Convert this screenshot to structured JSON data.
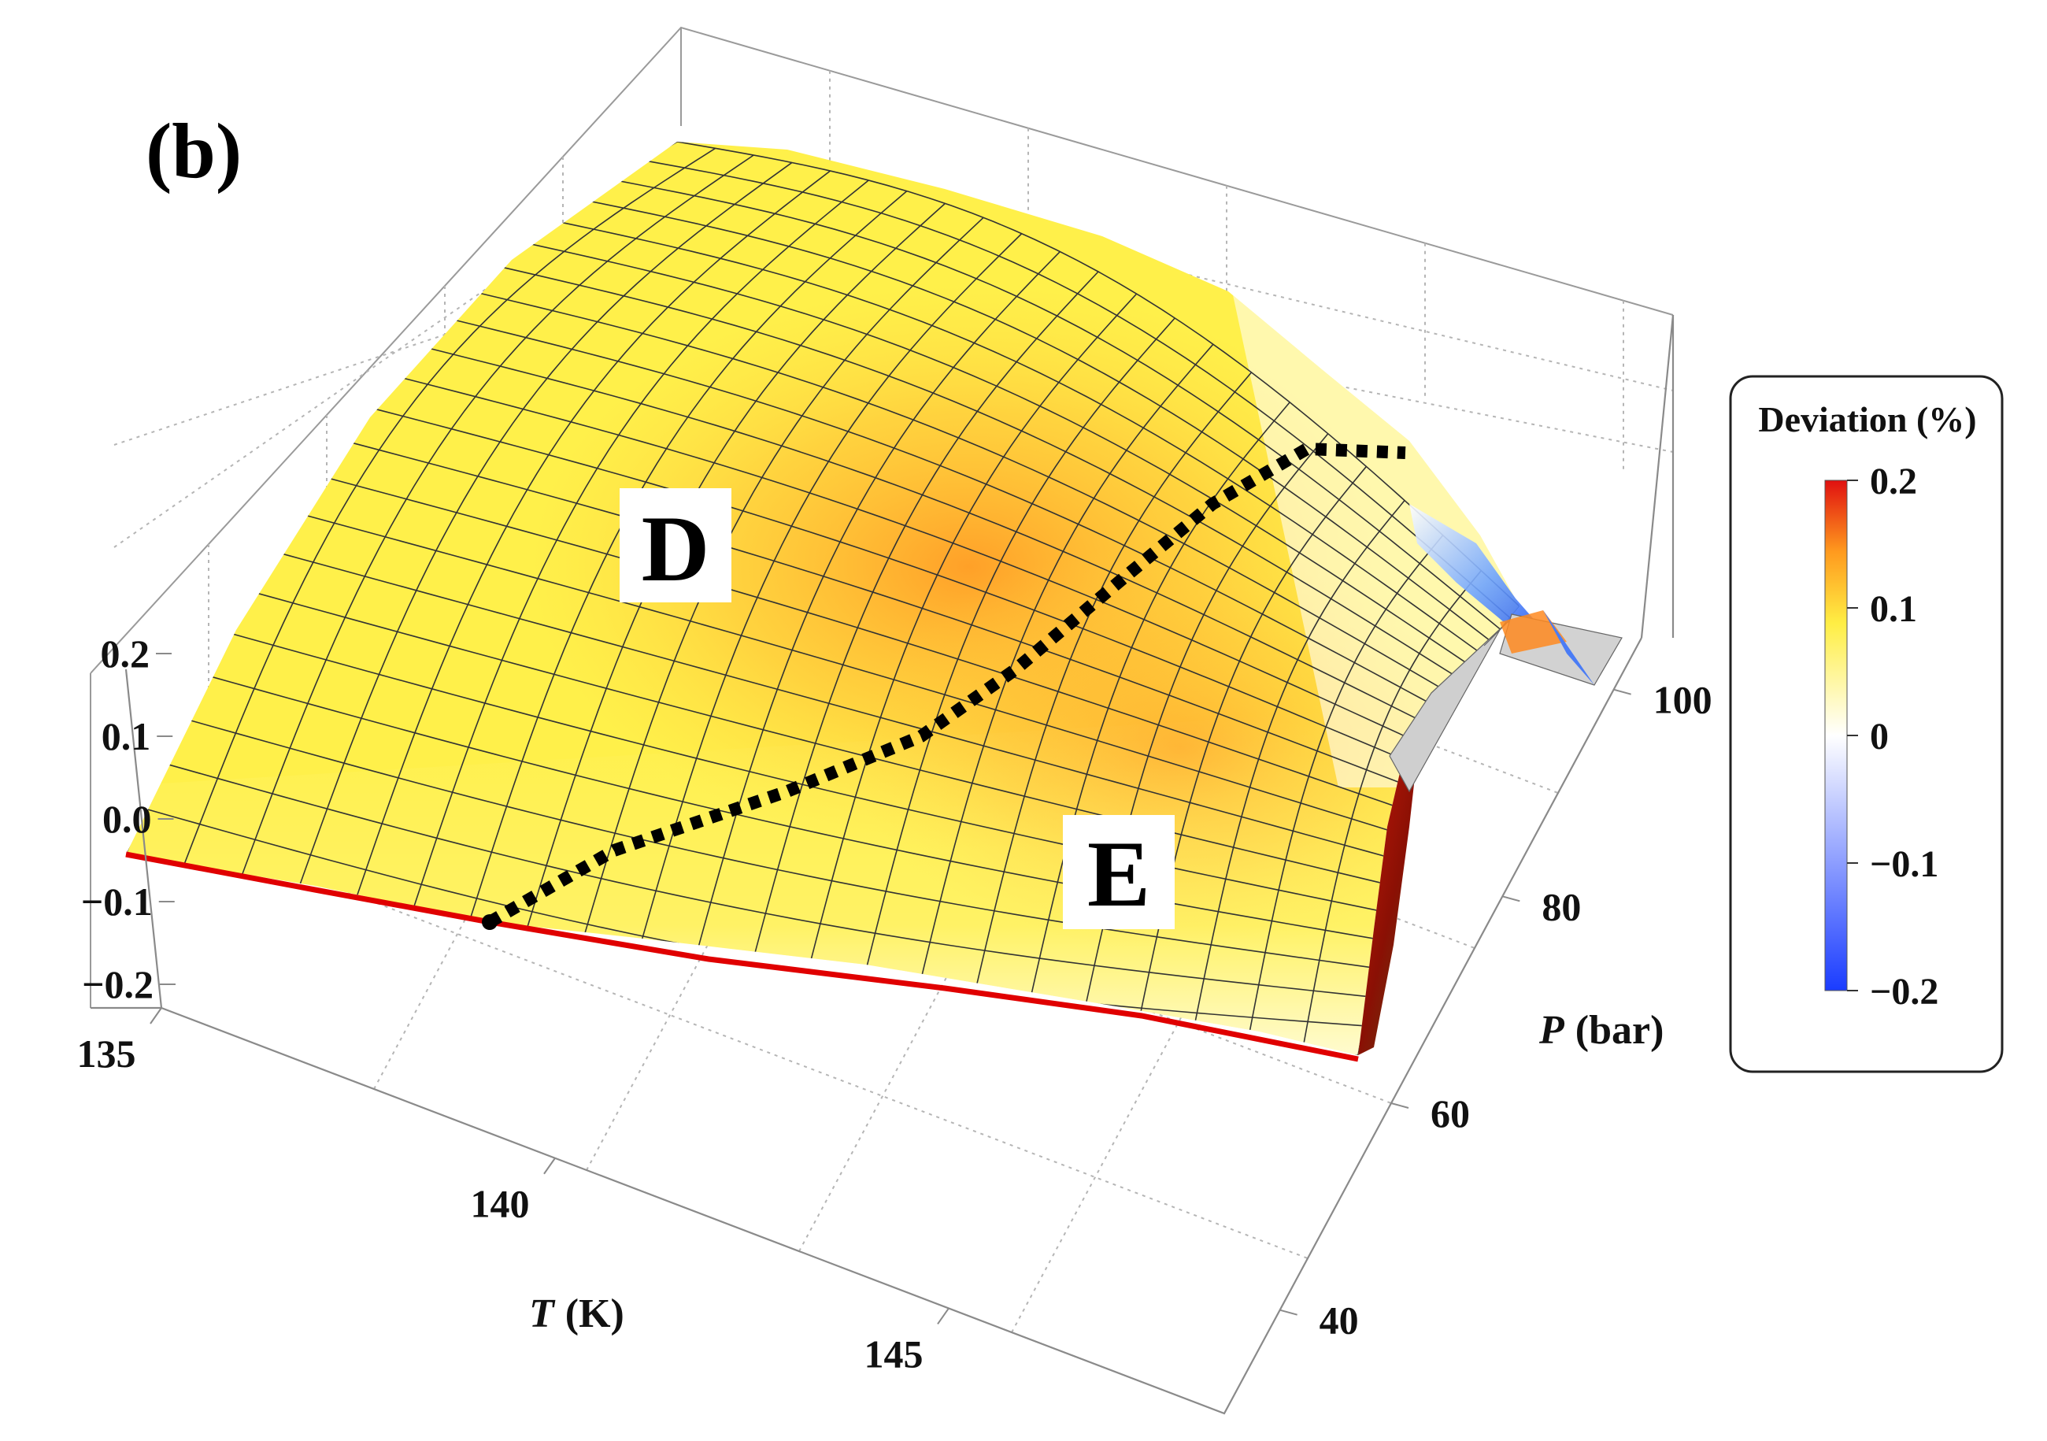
{
  "panel_label": "(b)",
  "region_labels": {
    "d": "D",
    "e": "E"
  },
  "chart_data": {
    "type": "surface3d",
    "title": "",
    "x_axis": {
      "symbol": "T",
      "unit": "(K)",
      "ticks": [
        135,
        140,
        145
      ],
      "range": [
        135,
        148.5
      ]
    },
    "y_axis": {
      "symbol": "P",
      "unit": "(bar)",
      "ticks": [
        40,
        60,
        80,
        100
      ],
      "range": [
        30,
        105
      ]
    },
    "z_axis": {
      "ticks": [
        "0.2",
        "0.1",
        "0.0",
        "−0.1",
        "−0.2"
      ],
      "range": [
        -0.2,
        0.2
      ]
    },
    "legend": {
      "title": "Deviation (%)",
      "ticks": [
        "0.2",
        "0.1",
        "0",
        "−0.1",
        "−0.2"
      ],
      "range": [
        -0.2,
        0.2
      ],
      "colors": [
        "#1a3cff",
        "#ffffff",
        "#ffee44",
        "#ff9a1e",
        "#e01010"
      ],
      "placement": "right"
    },
    "red_line_label": "",
    "dotted_line_label": ""
  }
}
